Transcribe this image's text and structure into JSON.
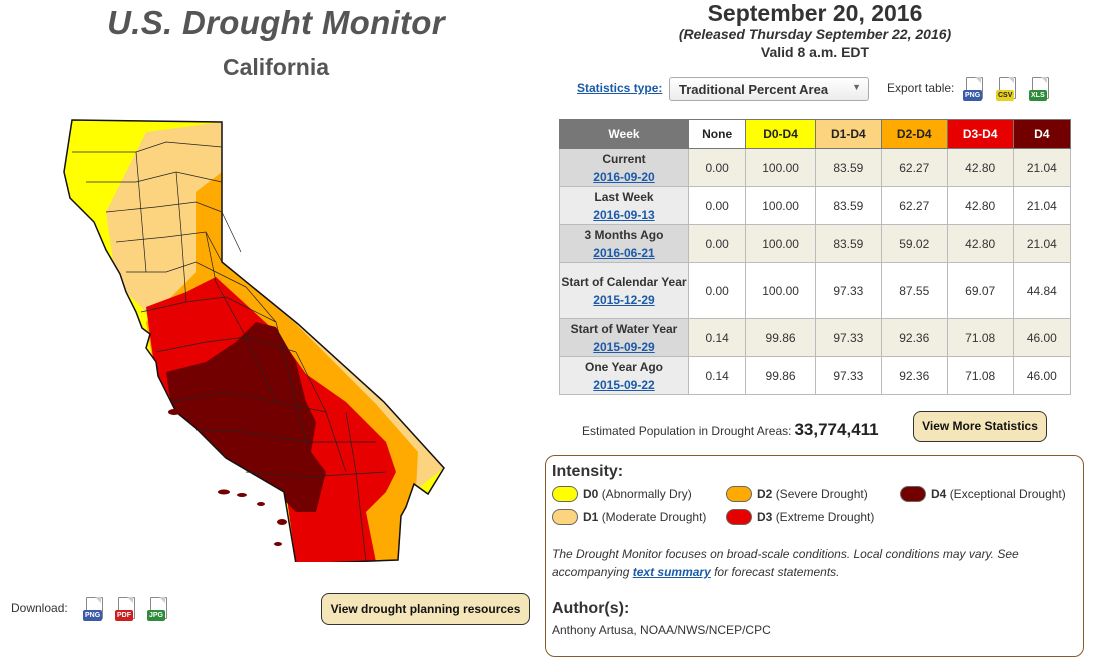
{
  "header": {
    "title": "U.S. Drought Monitor",
    "region": "California"
  },
  "map": {
    "colors": {
      "D0": "#ffff00",
      "D1": "#fcd37f",
      "D2": "#ffaa00",
      "D3": "#e60000",
      "D4": "#730000"
    }
  },
  "download": {
    "label": "Download:",
    "formats": [
      "PNG",
      "PDF",
      "JPG"
    ],
    "planning_button": "View drought planning resources"
  },
  "report": {
    "date": "September 20, 2016",
    "released": "(Released Thursday September 22, 2016)",
    "valid": "Valid 8 a.m. EDT"
  },
  "controls": {
    "stats_type_label": "Statistics type:",
    "stats_type_value": "Traditional Percent Area",
    "export_label": "Export table:",
    "export_formats": [
      "PNG",
      "CSV",
      "XLS"
    ]
  },
  "table": {
    "headers": [
      "Week",
      "None",
      "D0-D4",
      "D1-D4",
      "D2-D4",
      "D3-D4",
      "D4"
    ],
    "header_colors": [
      "#777777",
      "#ffffff",
      "#ffff00",
      "#fcd37f",
      "#ffaa00",
      "#e60000",
      "#730000"
    ],
    "header_text_colors": [
      "#ffffff",
      "#222222",
      "#222222",
      "#222222",
      "#222222",
      "#ffffff",
      "#ffffff"
    ],
    "rows": [
      {
        "label": "Current",
        "date": "2016-09-20",
        "values": [
          "0.00",
          "100.00",
          "83.59",
          "62.27",
          "42.80",
          "21.04"
        ]
      },
      {
        "label": "Last Week",
        "date": "2016-09-13",
        "values": [
          "0.00",
          "100.00",
          "83.59",
          "62.27",
          "42.80",
          "21.04"
        ]
      },
      {
        "label": "3 Months Ago",
        "date": "2016-06-21",
        "values": [
          "0.00",
          "100.00",
          "83.59",
          "59.02",
          "42.80",
          "21.04"
        ]
      },
      {
        "label": "Start of Calendar Year",
        "date": "2015-12-29",
        "values": [
          "0.00",
          "100.00",
          "97.33",
          "87.55",
          "69.07",
          "44.84"
        ]
      },
      {
        "label": "Start of Water Year",
        "date": "2015-09-29",
        "values": [
          "0.14",
          "99.86",
          "97.33",
          "92.36",
          "71.08",
          "46.00"
        ]
      },
      {
        "label": "One Year Ago",
        "date": "2015-09-22",
        "values": [
          "0.14",
          "99.86",
          "97.33",
          "92.36",
          "71.08",
          "46.00"
        ]
      }
    ]
  },
  "population": {
    "label": "Estimated Population in Drought Areas:",
    "value": "33,774,411",
    "more_button": "View More Statistics"
  },
  "legend": {
    "heading": "Intensity:",
    "items": [
      {
        "code": "D0",
        "desc": "(Abnormally Dry)",
        "color": "#ffff00"
      },
      {
        "code": "D1",
        "desc": "(Moderate Drought)",
        "color": "#fcd37f"
      },
      {
        "code": "D2",
        "desc": "(Severe Drought)",
        "color": "#ffaa00"
      },
      {
        "code": "D3",
        "desc": "(Extreme Drought)",
        "color": "#e60000"
      },
      {
        "code": "D4",
        "desc": "(Exceptional Drought)",
        "color": "#730000"
      }
    ],
    "note_before": "The Drought Monitor focuses on broad-scale conditions. Local conditions may vary. See accompanying ",
    "note_link": "text summary",
    "note_after": " for forecast statements.",
    "author_heading": "Author(s):",
    "author": "Anthony Artusa, NOAA/NWS/NCEP/CPC"
  }
}
